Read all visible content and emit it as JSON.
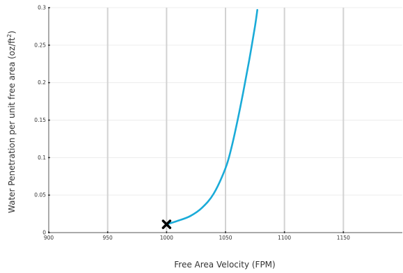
{
  "chart_data": {
    "type": "line",
    "xlabel": "Free Area Velocity (FPM)",
    "ylabel": "Water Penetration per unit free area  (oz/ft",
    "ylabel_superscript": "2",
    "ylabel_suffix": ")",
    "xlim": [
      900,
      1200
    ],
    "ylim": [
      0,
      0.3
    ],
    "x_ticks": [
      900,
      950,
      1000,
      1050,
      1100,
      1150
    ],
    "x_tick_labels": [
      "900",
      "950",
      "1000",
      "1050",
      "1100",
      "1150"
    ],
    "y_ticks": [
      0,
      0.05,
      0.1,
      0.15,
      0.2,
      0.25,
      0.3
    ],
    "y_tick_labels": [
      "0",
      "0.05",
      "0.1",
      "0.15",
      "0.2",
      "0.25",
      "0.3"
    ],
    "grid": "vertical major lines, light horizontal lines",
    "series": [
      {
        "color": "#1AABD8",
        "x": [
          1000,
          1010,
          1020,
          1030,
          1040,
          1050,
          1055,
          1060,
          1065,
          1070,
          1075,
          1077
        ],
        "y": [
          0.011,
          0.016,
          0.022,
          0.033,
          0.052,
          0.086,
          0.113,
          0.148,
          0.187,
          0.229,
          0.275,
          0.297
        ]
      }
    ],
    "marker": {
      "x": 1000,
      "y": 0.011,
      "symbol": "x",
      "color": "#000000"
    }
  }
}
